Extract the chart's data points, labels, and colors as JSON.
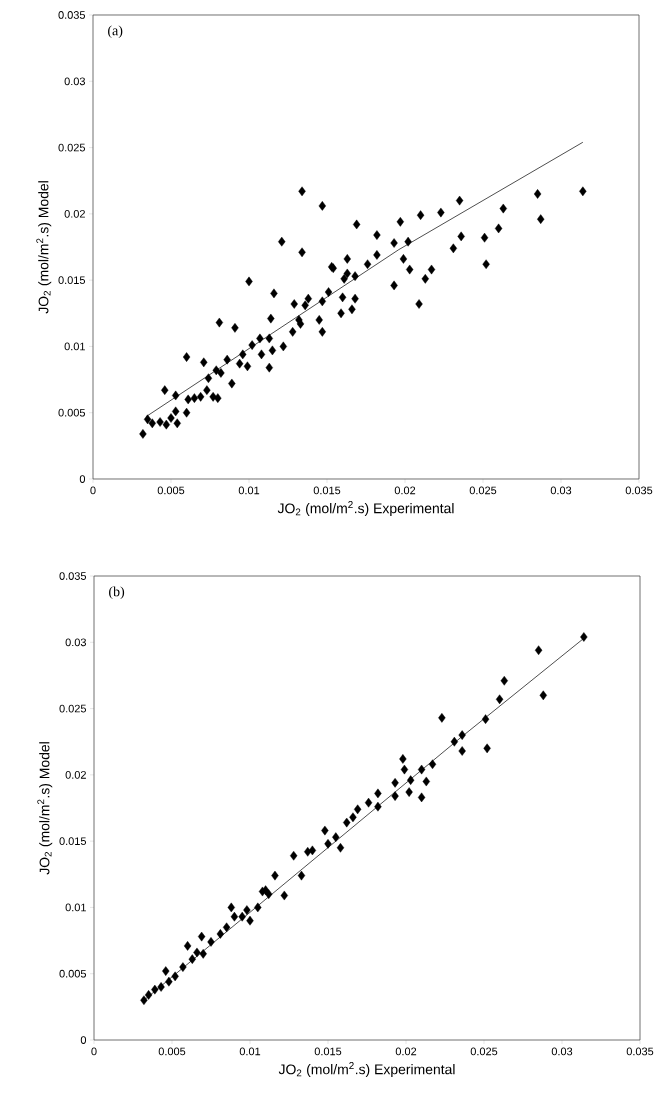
{
  "chart_data": [
    {
      "type": "scatter",
      "xlabel": "JO$_{2}$ (mol/m$^{2}$.s) Experimental",
      "ylabel": "JO$_{2}$ (mol/m$^{2}$.s) Model",
      "annotations": [
        "(a)"
      ],
      "xlim": [
        0,
        0.035
      ],
      "ylim": [
        0,
        0.035
      ],
      "xticks": [
        0,
        0.005,
        0.01,
        0.015,
        0.02,
        0.025,
        0.03,
        0.035
      ],
      "yticks": [
        0,
        0.005,
        0.01,
        0.015,
        0.02,
        0.025,
        0.03,
        0.035
      ],
      "series": [
        {
          "marker": "diamond",
          "color": "#000000",
          "x": [
            0.0314,
            0.0285,
            0.0287,
            0.0263,
            0.026,
            0.0251,
            0.0252,
            0.0235,
            0.0236,
            0.0231,
            0.0223,
            0.021,
            0.0217,
            0.0213,
            0.0209,
            0.0197,
            0.0202,
            0.0193,
            0.0199,
            0.0203,
            0.0193,
            0.0182,
            0.0182,
            0.0176,
            0.0169,
            0.0163,
            0.0153,
            0.0154,
            0.0163,
            0.0161,
            0.0168,
            0.0147,
            0.0134,
            0.0134,
            0.0151,
            0.016,
            0.0168,
            0.0147,
            0.0159,
            0.0166,
            0.0145,
            0.0147,
            0.0138,
            0.0136,
            0.0132,
            0.0121,
            0.01,
            0.0116,
            0.0081,
            0.0091,
            0.006,
            0.0071,
            0.0046,
            0.0032,
            0.0035,
            0.0038,
            0.0043,
            0.0047,
            0.005,
            0.0053,
            0.0053,
            0.0054,
            0.006,
            0.0061,
            0.0065,
            0.0069,
            0.0073,
            0.0074,
            0.0077,
            0.008,
            0.0079,
            0.0082,
            0.0086,
            0.0089,
            0.0094,
            0.0096,
            0.0099,
            0.0102,
            0.0107,
            0.0108,
            0.0113,
            0.0113,
            0.0115,
            0.0114,
            0.0129,
            0.0133,
            0.0128,
            0.0122
          ],
          "values": [
            0.0217,
            0.0215,
            0.0196,
            0.0204,
            0.0189,
            0.0182,
            0.0162,
            0.021,
            0.0183,
            0.0174,
            0.0201,
            0.0199,
            0.0158,
            0.0151,
            0.0132,
            0.0194,
            0.0179,
            0.0178,
            0.0166,
            0.0158,
            0.0146,
            0.0184,
            0.0169,
            0.0162,
            0.0192,
            0.0166,
            0.016,
            0.0159,
            0.0155,
            0.0151,
            0.0153,
            0.0206,
            0.0217,
            0.0171,
            0.0141,
            0.0137,
            0.0136,
            0.0134,
            0.0125,
            0.0128,
            0.012,
            0.0111,
            0.0136,
            0.0131,
            0.012,
            0.0179,
            0.0149,
            0.014,
            0.0118,
            0.0114,
            0.0092,
            0.0088,
            0.0067,
            0.0034,
            0.0045,
            0.0042,
            0.0043,
            0.0041,
            0.0046,
            0.0051,
            0.0063,
            0.0042,
            0.005,
            0.006,
            0.0061,
            0.0062,
            0.0067,
            0.0076,
            0.0062,
            0.0061,
            0.0082,
            0.008,
            0.009,
            0.0072,
            0.0087,
            0.0094,
            0.0085,
            0.0101,
            0.0106,
            0.0094,
            0.0106,
            0.0084,
            0.0097,
            0.0121,
            0.0132,
            0.0117,
            0.0111,
            0.01
          ]
        },
        {
          "type": "line",
          "marker": "none",
          "color": "#000000",
          "x": [
            0.0034,
            0.0196,
            0.0314
          ],
          "values": [
            0.0047,
            0.0173,
            0.0254
          ]
        }
      ]
    },
    {
      "type": "scatter",
      "xlabel": "JO$_{2}$ (mol/m$^{2}$.s) Experimental",
      "ylabel": "JO$_{2}$ (mol/m$^{2}$.s) Model",
      "annotations": [
        "(b)"
      ],
      "xlim": [
        0,
        0.035
      ],
      "ylim": [
        0,
        0.035
      ],
      "xticks": [
        0,
        0.005,
        0.01,
        0.015,
        0.02,
        0.025,
        0.03,
        0.035
      ],
      "yticks": [
        0,
        0.005,
        0.01,
        0.015,
        0.02,
        0.025,
        0.03,
        0.035
      ],
      "series": [
        {
          "marker": "diamond",
          "color": "#000000",
          "x": [
            0.0314,
            0.0285,
            0.0288,
            0.0263,
            0.026,
            0.0251,
            0.0252,
            0.0223,
            0.0236,
            0.0231,
            0.0236,
            0.0217,
            0.021,
            0.0198,
            0.0199,
            0.0213,
            0.021,
            0.0203,
            0.0202,
            0.0193,
            0.0193,
            0.0182,
            0.0182,
            0.0176,
            0.0169,
            0.0166,
            0.0162,
            0.0128,
            0.0137,
            0.0133,
            0.0122,
            0.0116,
            0.0112,
            0.0108,
            0.0105,
            0.01,
            0.0098,
            0.0088,
            0.009,
            0.0085,
            0.0081,
            0.0075,
            0.0069,
            0.007,
            0.006,
            0.0063,
            0.0057,
            0.0052,
            0.0046,
            0.0043,
            0.0039,
            0.0032,
            0.0035,
            0.0048,
            0.0066,
            0.0095,
            0.011,
            0.014,
            0.015,
            0.0155,
            0.0148,
            0.0158
          ],
          "values": [
            0.0304,
            0.0294,
            0.026,
            0.0271,
            0.0257,
            0.0242,
            0.022,
            0.0243,
            0.023,
            0.0225,
            0.0218,
            0.0208,
            0.0204,
            0.0212,
            0.0204,
            0.0195,
            0.0183,
            0.0196,
            0.0187,
            0.0194,
            0.0184,
            0.0186,
            0.0176,
            0.0179,
            0.0174,
            0.0168,
            0.0164,
            0.0139,
            0.0142,
            0.0124,
            0.0109,
            0.0124,
            0.011,
            0.0112,
            0.01,
            0.009,
            0.0098,
            0.01,
            0.0093,
            0.0085,
            0.008,
            0.0074,
            0.0078,
            0.0065,
            0.0071,
            0.0061,
            0.0055,
            0.0048,
            0.0052,
            0.004,
            0.0038,
            0.003,
            0.0034,
            0.0044,
            0.0066,
            0.0093,
            0.0113,
            0.0143,
            0.0148,
            0.0153,
            0.0158,
            0.0145
          ]
        },
        {
          "type": "line",
          "marker": "none",
          "color": "#000000",
          "x": [
            0.0032,
            0.0236,
            0.0314
          ],
          "values": [
            0.003,
            0.0229,
            0.0303
          ]
        }
      ]
    }
  ]
}
